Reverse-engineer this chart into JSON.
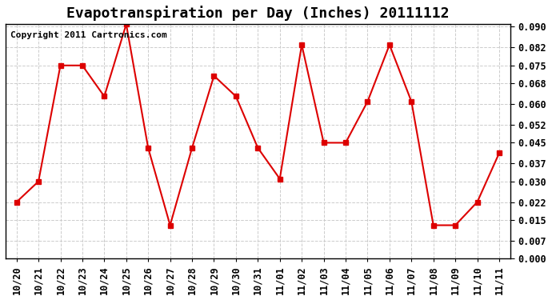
{
  "title": "Evapotranspiration per Day (Inches) 20111112",
  "copyright_text": "Copyright 2011 Cartronics.com",
  "x_labels": [
    "10/20",
    "10/21",
    "10/22",
    "10/23",
    "10/24",
    "10/25",
    "10/26",
    "10/27",
    "10/28",
    "10/29",
    "10/30",
    "10/31",
    "11/01",
    "11/02",
    "11/03",
    "11/04",
    "11/05",
    "11/06",
    "11/07",
    "11/08",
    "11/09",
    "11/10",
    "11/11"
  ],
  "y_values": [
    0.022,
    0.03,
    0.075,
    0.075,
    0.063,
    0.091,
    0.043,
    0.013,
    0.043,
    0.071,
    0.063,
    0.043,
    0.031,
    0.083,
    0.045,
    0.045,
    0.061,
    0.083,
    0.061,
    0.013,
    0.013,
    0.022,
    0.041
  ],
  "line_color": "#dd0000",
  "marker": "s",
  "marker_size": 4,
  "grid_color": "#cccccc",
  "background_color": "#ffffff",
  "plot_bg_color": "#ffffff",
  "y_min": 0.0,
  "y_max": 0.09,
  "y_ticks": [
    0.0,
    0.007,
    0.015,
    0.022,
    0.03,
    0.037,
    0.045,
    0.052,
    0.06,
    0.068,
    0.075,
    0.082,
    0.09
  ],
  "title_fontsize": 13,
  "copyright_fontsize": 8,
  "tick_fontsize": 8.5,
  "fig_width": 6.9,
  "fig_height": 3.75
}
